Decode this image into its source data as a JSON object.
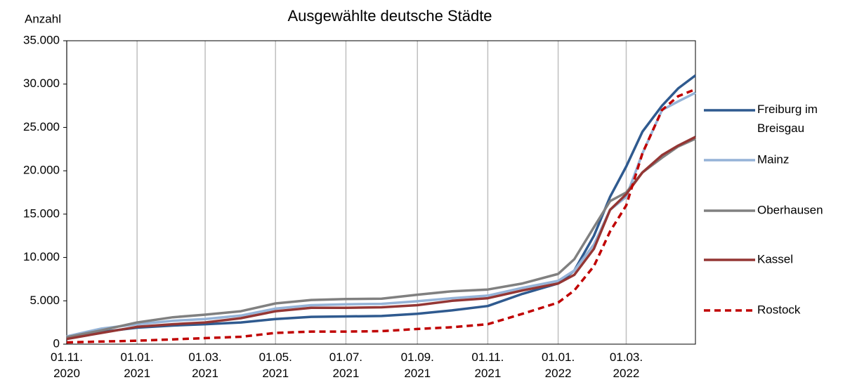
{
  "chart_data": {
    "type": "line",
    "title": "Ausgewählte deutsche Städte",
    "y_label": "Anzahl",
    "x": [
      "2020-11-01",
      "2020-12-01",
      "2021-01-01",
      "2021-02-01",
      "2021-03-01",
      "2021-04-01",
      "2021-05-01",
      "2021-06-01",
      "2021-07-01",
      "2021-08-01",
      "2021-09-01",
      "2021-10-01",
      "2021-11-01",
      "2021-12-01",
      "2022-01-01",
      "2022-01-15",
      "2022-02-01",
      "2022-02-15",
      "2022-03-01",
      "2022-03-15",
      "2022-04-01",
      "2022-04-15",
      "2022-04-30"
    ],
    "series": [
      {
        "name": "Freiburg im Breisgau",
        "color": "#2f5a8f",
        "dash": false,
        "values": [
          700,
          1400,
          1900,
          2150,
          2300,
          2500,
          2900,
          3150,
          3200,
          3250,
          3500,
          3900,
          4400,
          5800,
          7000,
          8500,
          12500,
          17000,
          20500,
          24500,
          27500,
          29500,
          31000
        ]
      },
      {
        "name": "Mainz",
        "color": "#95b3d7",
        "dash": false,
        "values": [
          900,
          1800,
          2300,
          2700,
          2900,
          3300,
          4100,
          4500,
          4600,
          4650,
          4950,
          5300,
          5600,
          6500,
          7300,
          8500,
          11500,
          15500,
          17000,
          22000,
          27000,
          28000,
          29000
        ]
      },
      {
        "name": "Oberhausen",
        "color": "#808080",
        "dash": false,
        "values": [
          800,
          1600,
          2500,
          3100,
          3400,
          3800,
          4700,
          5100,
          5200,
          5250,
          5700,
          6100,
          6300,
          7000,
          8100,
          9800,
          13500,
          16500,
          17500,
          19800,
          21500,
          22800,
          23700
        ]
      },
      {
        "name": "Kassel",
        "color": "#943634",
        "dash": false,
        "values": [
          600,
          1300,
          2000,
          2300,
          2500,
          3000,
          3800,
          4200,
          4200,
          4250,
          4500,
          5000,
          5300,
          6200,
          7000,
          8000,
          11000,
          15500,
          17300,
          19800,
          21800,
          22900,
          23900
        ]
      },
      {
        "name": "Rostock",
        "color": "#c00000",
        "dash": true,
        "values": [
          200,
          300,
          400,
          550,
          700,
          850,
          1300,
          1450,
          1450,
          1500,
          1750,
          1950,
          2300,
          3500,
          4800,
          6200,
          9000,
          13000,
          16000,
          22000,
          27000,
          28600,
          29400
        ]
      }
    ],
    "xlim": [
      "2020-11-01",
      "2022-04-30"
    ],
    "xticks": [
      {
        "value": "2020-11-01",
        "label": "01.11. 2020"
      },
      {
        "value": "2021-01-01",
        "label": "01.01. 2021"
      },
      {
        "value": "2021-03-01",
        "label": "01.03. 2021"
      },
      {
        "value": "2021-05-01",
        "label": "01.05. 2021"
      },
      {
        "value": "2021-07-01",
        "label": "01.07. 2021"
      },
      {
        "value": "2021-09-01",
        "label": "01.09. 2021"
      },
      {
        "value": "2021-11-01",
        "label": "01.11. 2021"
      },
      {
        "value": "2022-01-01",
        "label": "01.01. 2022"
      },
      {
        "value": "2022-03-01",
        "label": "01.03. 2022"
      }
    ],
    "ylim": [
      0,
      35000
    ],
    "yticks": [
      0,
      {
        "value": 5000,
        "label": "5.000"
      },
      {
        "value": 10000,
        "label": "10.000"
      },
      {
        "value": 15000,
        "label": "15.000"
      },
      {
        "value": 20000,
        "label": "20.000"
      },
      {
        "value": 25000,
        "label": "25.000"
      },
      {
        "value": 30000,
        "label": "30.000"
      },
      {
        "value": 35000,
        "label": "35.000"
      }
    ],
    "grid": true,
    "legend": "right"
  }
}
